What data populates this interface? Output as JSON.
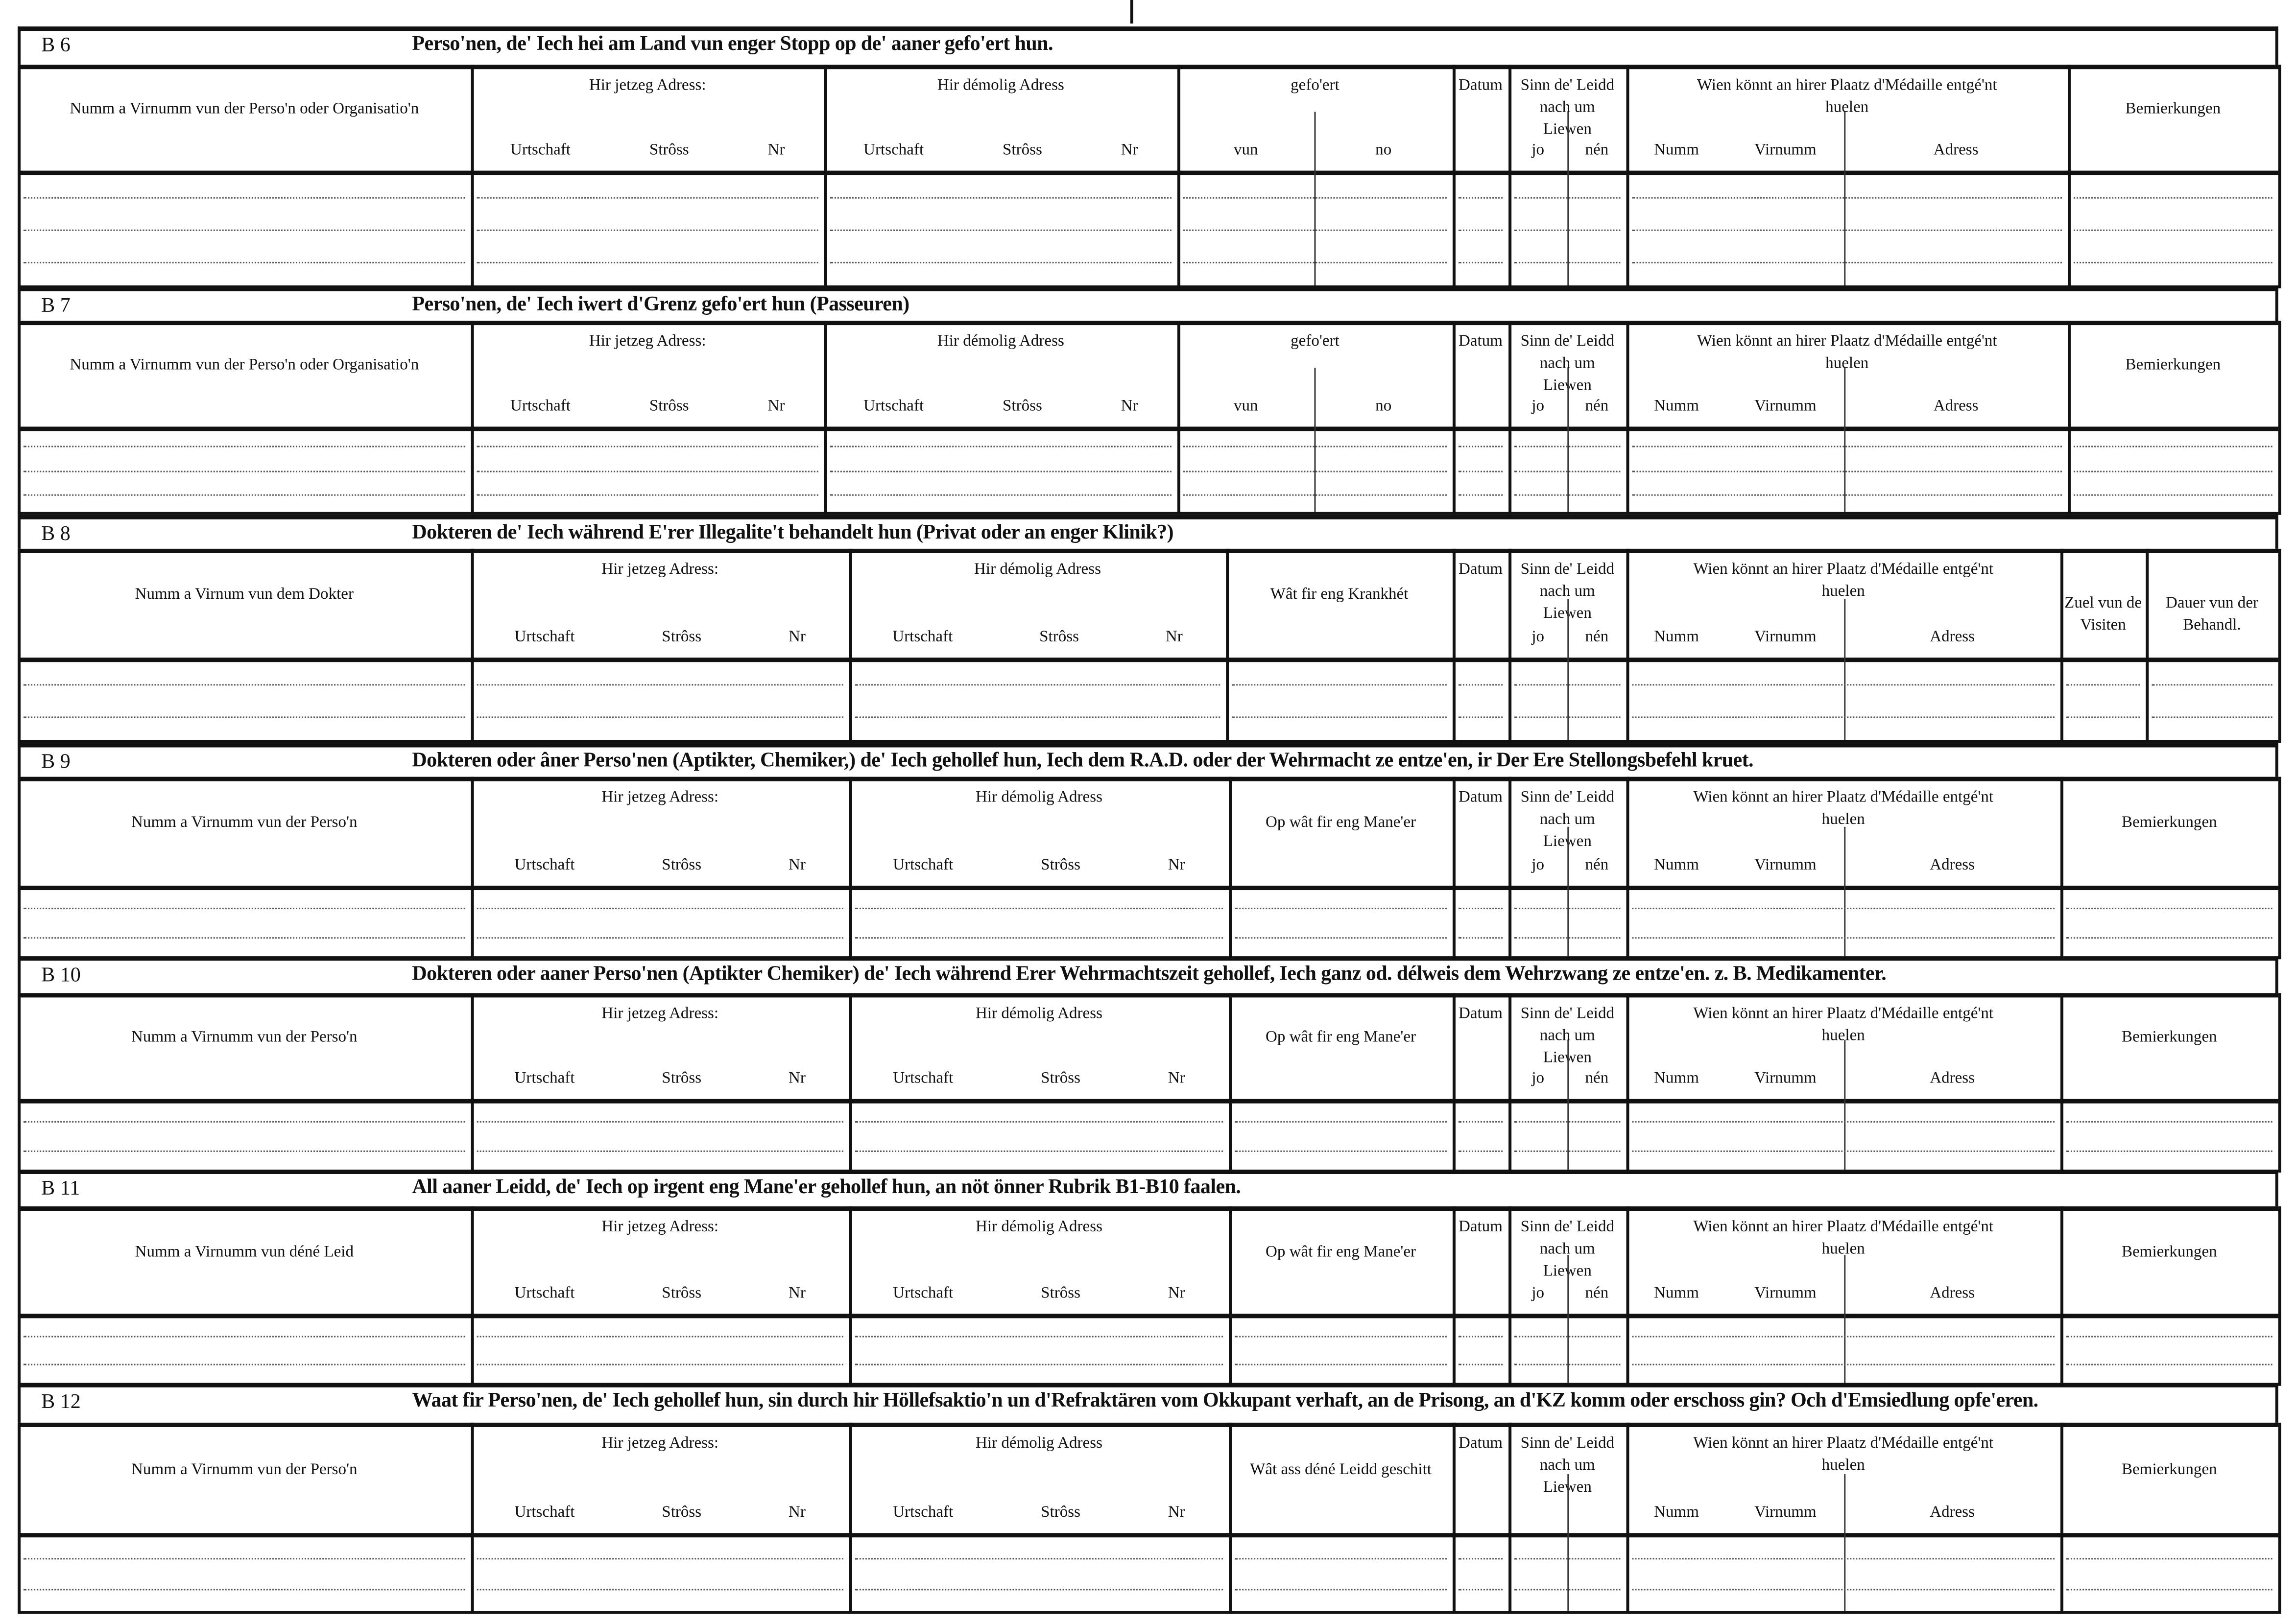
{
  "sections": [
    {
      "code": "B 6",
      "title": "Perso'nen, de' Iech hei am Land vun enger Stopp op de' aaner gefo'ert hun.",
      "columns": [
        {
          "label": "Numm a Virnumm vun der Perso'n oder Organisatio'n"
        },
        {
          "label": "Hir jetzeg Adress:",
          "sub": [
            "Urtschaft",
            "Strôss",
            "Nr"
          ]
        },
        {
          "label": "Hir démolig Adress",
          "sub": [
            "Urtschaft",
            "Strôss",
            "Nr"
          ]
        },
        {
          "label": "gefo'ert",
          "sub": [
            "vun",
            "no"
          ]
        },
        {
          "label": "Datum"
        },
        {
          "label": "Sinn de' Leidd nach um Liewen",
          "sub": [
            "jo",
            "nén"
          ]
        },
        {
          "label": "Wien könnt an hirer Plaatz d'Médaille entgé'nt huelen",
          "sub": [
            "Numm",
            "Virnumm",
            "Adress"
          ]
        },
        {
          "label": "Bemierkungen"
        }
      ]
    },
    {
      "code": "B 7",
      "title": "Perso'nen, de' Iech iwert d'Grenz gefo'ert hun (Passeuren)",
      "columns": [
        {
          "label": "Numm a Virnumm vun der Perso'n oder Organisatio'n"
        },
        {
          "label": "Hir jetzeg Adress:",
          "sub": [
            "Urtschaft",
            "Strôss",
            "Nr"
          ]
        },
        {
          "label": "Hir démolig Adress",
          "sub": [
            "Urtschaft",
            "Strôss",
            "Nr"
          ]
        },
        {
          "label": "gefo'ert",
          "sub": [
            "vun",
            "no"
          ]
        },
        {
          "label": "Datum"
        },
        {
          "label": "Sinn de' Leidd nach um Liewen",
          "sub": [
            "jo",
            "nén"
          ]
        },
        {
          "label": "Wien könnt an hirer Plaatz d'Médaille entgé'nt huelen",
          "sub": [
            "Numm",
            "Virnumm",
            "Adress"
          ]
        },
        {
          "label": "Bemierkungen"
        }
      ]
    },
    {
      "code": "B 8",
      "title": "Dokteren de' Iech während E'rer Illegalite't behandelt hun (Privat oder an enger Klinik?)",
      "columns": [
        {
          "label": "Numm a Virnum vun dem Dokter"
        },
        {
          "label": "Hir jetzeg Adress:",
          "sub": [
            "Urtschaft",
            "Strôss",
            "Nr"
          ]
        },
        {
          "label": "Hir démolig Adress",
          "sub": [
            "Urtschaft",
            "Strôss",
            "Nr"
          ]
        },
        {
          "label": "Wât fir eng Krankhét"
        },
        {
          "label": "Datum"
        },
        {
          "label": "Sinn de' Leidd nach um Liewen",
          "sub": [
            "jo",
            "nén"
          ]
        },
        {
          "label": "Wien könnt an hirer Plaatz d'Médaille entgé'nt huelen",
          "sub": [
            "Numm",
            "Virnumm",
            "Adress"
          ]
        },
        {
          "label": "Zuel vun de Visiten"
        },
        {
          "label": "Dauer vun der Behandl."
        }
      ]
    },
    {
      "code": "B 9",
      "title": "Dokteren oder âner Perso'nen (Aptikter, Chemiker,) de' Iech gehollef hun, Iech dem R.A.D. oder der Wehrmacht ze entze'en, ir Der Ere Stellongsbefehl kruet.",
      "columns": [
        {
          "label": "Numm a Virnumm vun der Perso'n"
        },
        {
          "label": "Hir jetzeg Adress:",
          "sub": [
            "Urtschaft",
            "Strôss",
            "Nr"
          ]
        },
        {
          "label": "Hir démolig Adress",
          "sub": [
            "Urtschaft",
            "Strôss",
            "Nr"
          ]
        },
        {
          "label": "Op wât fir eng Mane'er"
        },
        {
          "label": "Datum"
        },
        {
          "label": "Sinn de' Leidd nach um Liewen",
          "sub": [
            "jo",
            "nén"
          ]
        },
        {
          "label": "Wien könnt an hirer Plaatz d'Médaille entgé'nt huelen",
          "sub": [
            "Numm",
            "Virnumm",
            "Adress"
          ]
        },
        {
          "label": "Bemierkungen"
        }
      ]
    },
    {
      "code": "B 10",
      "title": "Dokteren oder aaner Perso'nen (Aptikter Chemiker) de' Iech während Erer Wehrmachtszeit gehollef, Iech ganz od. délweis dem Wehrzwang ze entze'en. z. B. Medikamenter.",
      "columns": [
        {
          "label": "Numm a Virnumm vun der Perso'n"
        },
        {
          "label": "Hir jetzeg Adress:",
          "sub": [
            "Urtschaft",
            "Strôss",
            "Nr"
          ]
        },
        {
          "label": "Hir démolig Adress",
          "sub": [
            "Urtschaft",
            "Strôss",
            "Nr"
          ]
        },
        {
          "label": "Op wât fir eng Mane'er"
        },
        {
          "label": "Datum"
        },
        {
          "label": "Sinn de' Leidd nach um Liewen",
          "sub": [
            "jo",
            "nén"
          ]
        },
        {
          "label": "Wien könnt an hirer Plaatz d'Médaille entgé'nt huelen",
          "sub": [
            "Numm",
            "Virnumm",
            "Adress"
          ]
        },
        {
          "label": "Bemierkungen"
        }
      ]
    },
    {
      "code": "B 11",
      "title": "All aaner Leidd, de' Iech op irgent eng Mane'er gehollef hun, an nöt önner Rubrik B1-B10 faalen.",
      "columns": [
        {
          "label": "Numm a Virnumm vun déné Leid"
        },
        {
          "label": "Hir jetzeg Adress:",
          "sub": [
            "Urtschaft",
            "Strôss",
            "Nr"
          ]
        },
        {
          "label": "Hir démolig Adress",
          "sub": [
            "Urtschaft",
            "Strôss",
            "Nr"
          ]
        },
        {
          "label": "Op wât fir eng Mane'er"
        },
        {
          "label": "Datum"
        },
        {
          "label": "Sinn de' Leidd nach um Liewen",
          "sub": [
            "jo",
            "nén"
          ]
        },
        {
          "label": "Wien könnt an hirer Plaatz d'Médaille entgé'nt huelen",
          "sub": [
            "Numm",
            "Virnumm",
            "Adress"
          ]
        },
        {
          "label": "Bemierkungen"
        }
      ]
    },
    {
      "code": "B 12",
      "title": "Waat fir Perso'nen, de' Iech gehollef hun, sin durch hir Höllefsaktio'n un d'Refraktären vom Okkupant verhaft, an de Prisong, an d'KZ komm oder erschoss gin? Och d'Emsiedlung opfe'eren.",
      "columns": [
        {
          "label": "Numm a Virnumm vun der Perso'n"
        },
        {
          "label": "Hir jetzeg Adress:",
          "sub": [
            "Urtschaft",
            "Strôss",
            "Nr"
          ]
        },
        {
          "label": "Hir démolig Adress",
          "sub": [
            "Urtschaft",
            "Strôss",
            "Nr"
          ]
        },
        {
          "label": "Wât ass déné Leidd geschitt"
        },
        {
          "label": "Datum"
        },
        {
          "label": "Sinn de' Leidd nach um Liewen"
        },
        {
          "label": "Wien könnt an hirer Plaatz d'Médaille entgé'nt huelen",
          "sub": [
            "Numm",
            "Virnumm",
            "Adress"
          ]
        },
        {
          "label": "Bemierkungen"
        }
      ]
    }
  ]
}
